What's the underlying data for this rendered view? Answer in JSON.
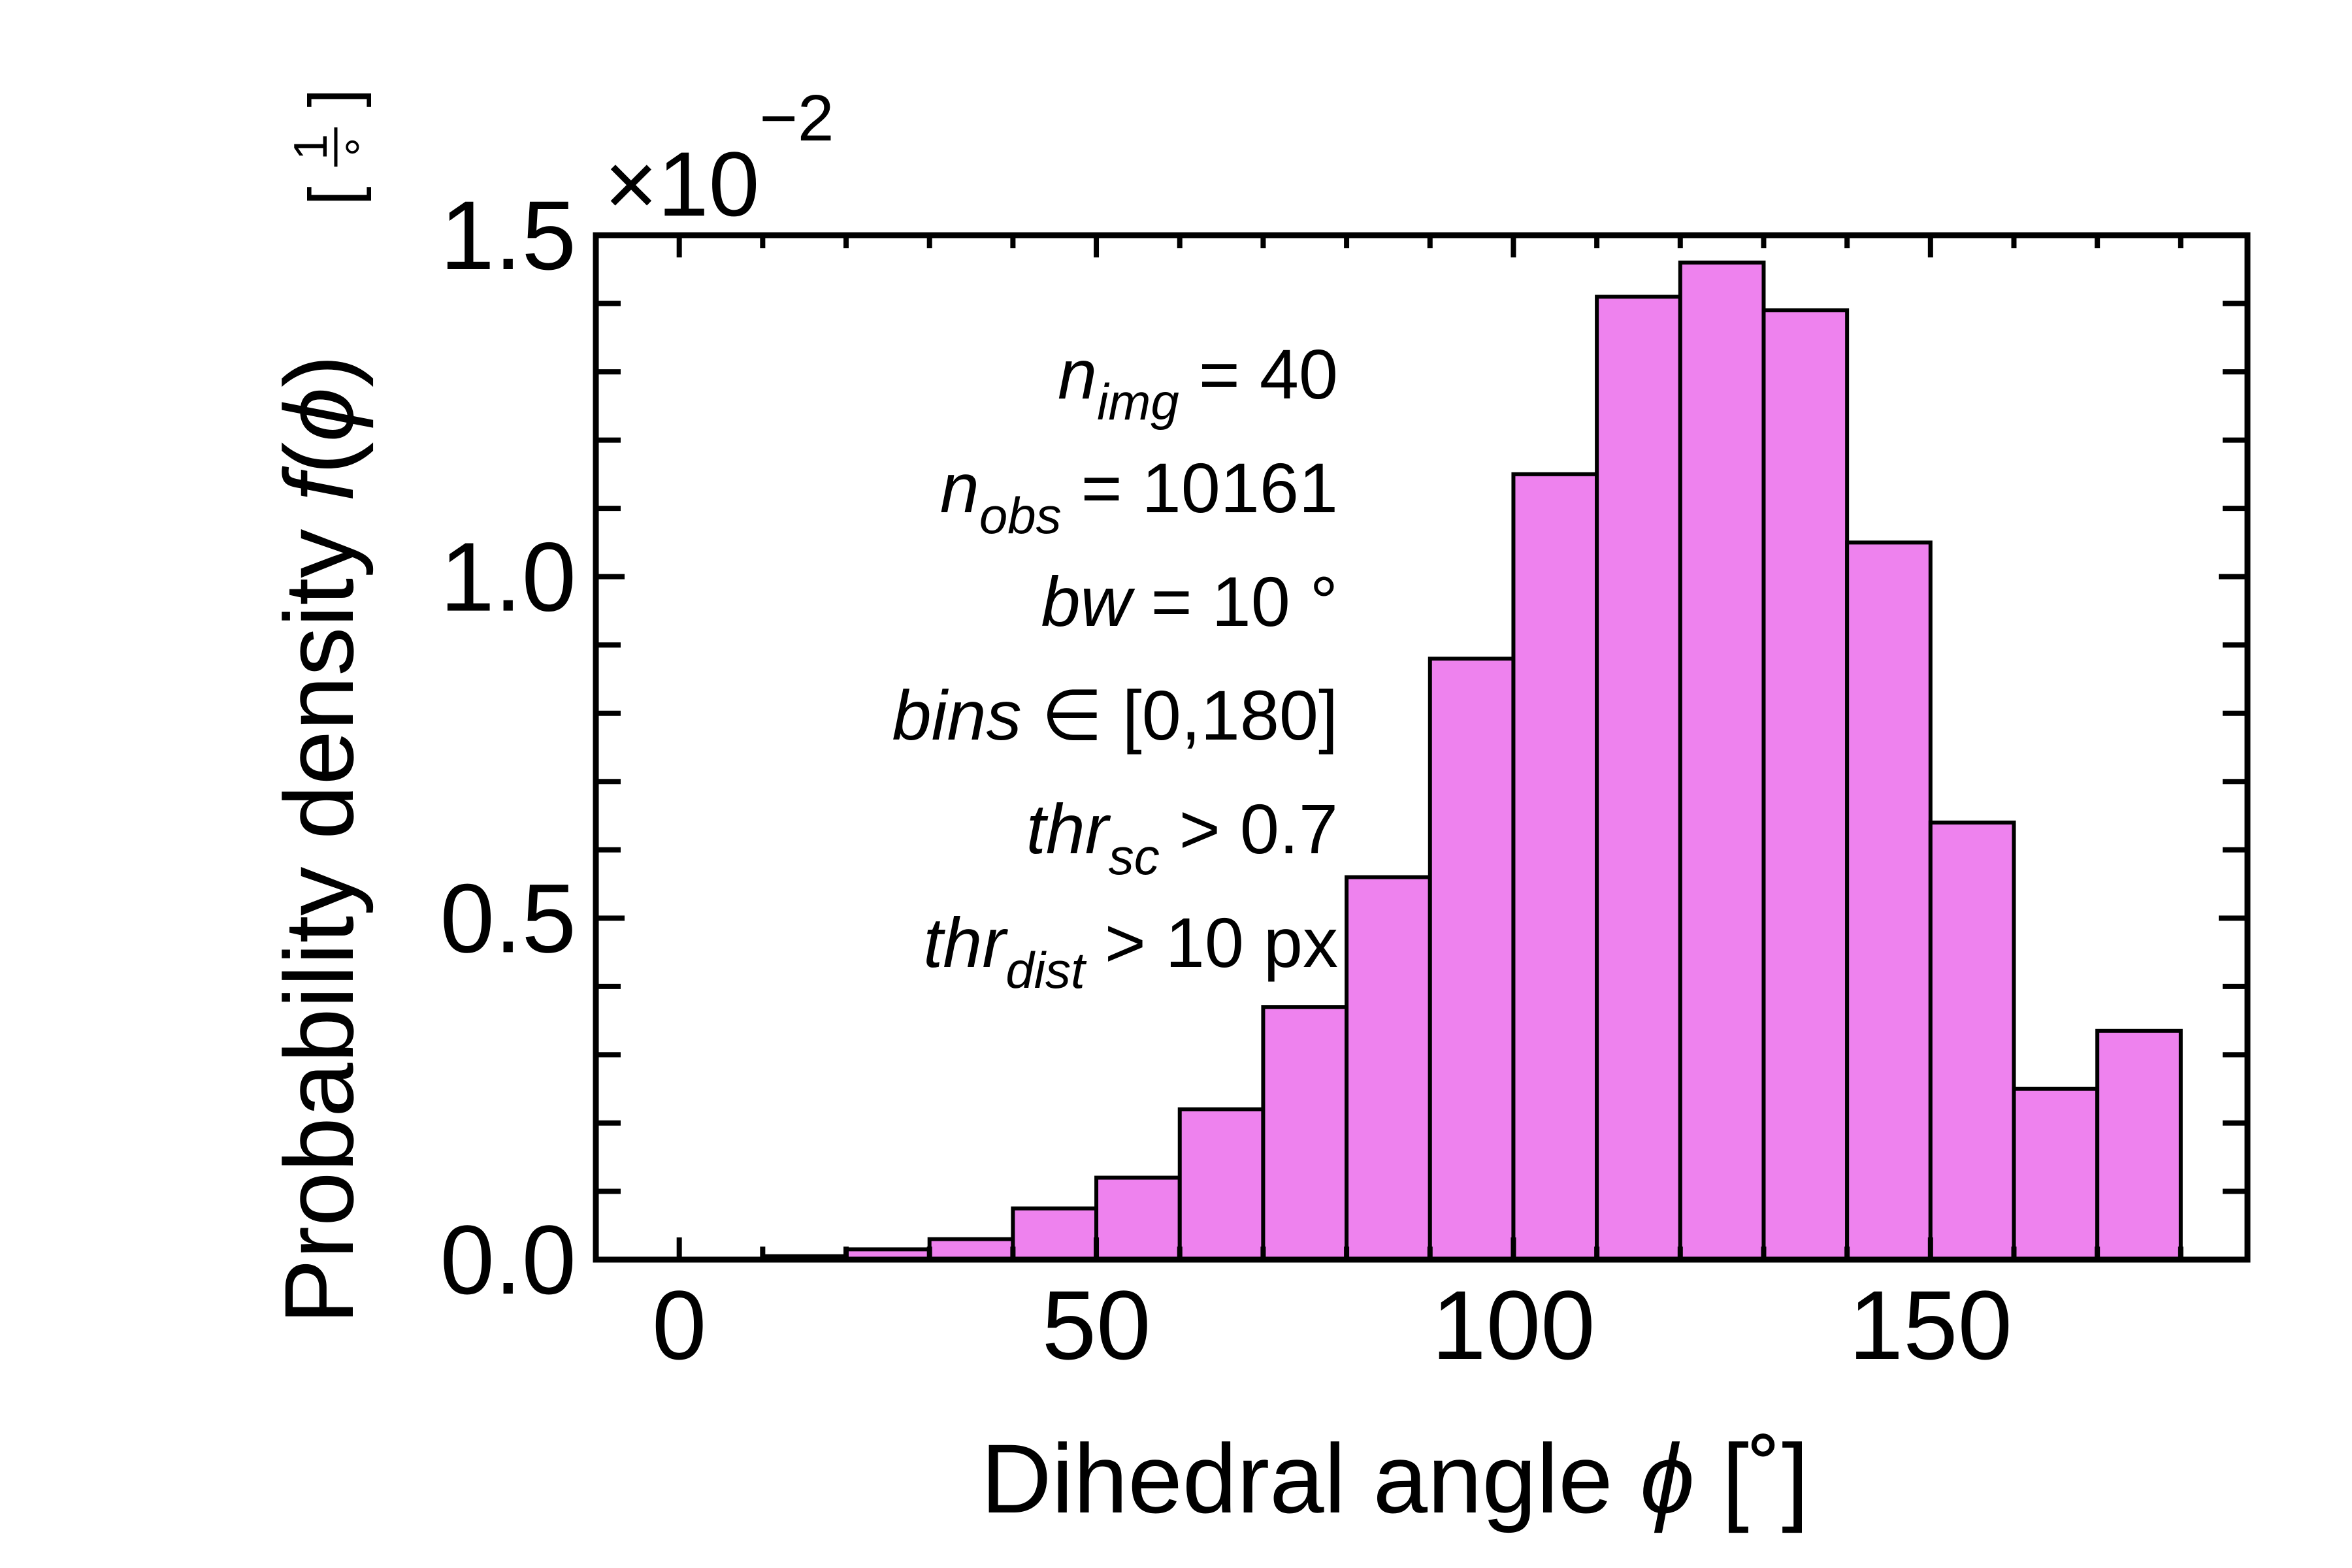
{
  "chart_data": {
    "type": "bar",
    "xlabel_prefix": "Dihedral angle ",
    "xlabel_symbol": "ϕ",
    "xlabel_unit": " [˚]",
    "ylabel_prefix": "Probability density ",
    "ylabel_func": "f",
    "ylabel_open": "(",
    "ylabel_symbol": "ϕ",
    "ylabel_close": ")",
    "ylabel_unit_open": "[",
    "ylabel_unit_num": "1",
    "ylabel_unit_den": "°",
    "ylabel_unit_close": "]",
    "offset_text": "×10",
    "offset_exp": "−2",
    "scale": 0.01,
    "xlim": [
      -10,
      188
    ],
    "ylim": [
      0,
      1.5
    ],
    "xticks": [
      0,
      50,
      100,
      150
    ],
    "xtick_labels": [
      "0",
      "50",
      "100",
      "150"
    ],
    "yticks": [
      0.0,
      0.5,
      1.0,
      1.5
    ],
    "ytick_labels": [
      "0.0",
      "0.5",
      "1.0",
      "1.5"
    ],
    "bin_width": 10,
    "bin_edges": [
      0,
      10,
      20,
      30,
      40,
      50,
      60,
      70,
      80,
      90,
      100,
      110,
      120,
      130,
      140,
      150,
      160,
      170,
      180
    ],
    "values": [
      0.0,
      0.005,
      0.015,
      0.03,
      0.075,
      0.12,
      0.22,
      0.37,
      0.56,
      0.88,
      1.15,
      1.41,
      1.46,
      1.39,
      1.05,
      0.64,
      0.25,
      0.335
    ],
    "bar_color": "#ee82ee",
    "edge_color": "#000000",
    "annotations": [
      {
        "main": "n",
        "sub": "img",
        "rest": " = 40"
      },
      {
        "main": "n",
        "sub": "obs",
        "rest": " = 10161"
      },
      {
        "main": "bw",
        "sub": "",
        "rest": " = 10 °"
      },
      {
        "main": "bins",
        "sub": "",
        "rest": " ∈ [0,180]"
      },
      {
        "main": "thr",
        "sub": "sc",
        "rest": " >  0.7"
      },
      {
        "main": "thr",
        "sub": "dist",
        "rest": " > 10 px"
      }
    ]
  }
}
